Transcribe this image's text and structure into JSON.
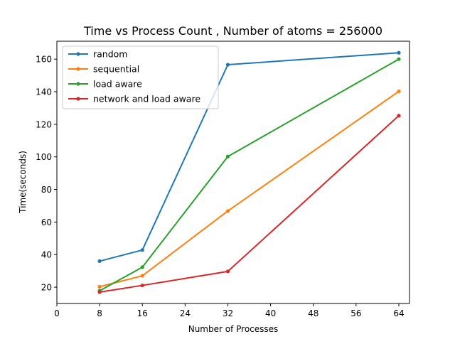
{
  "chart_data": {
    "type": "line",
    "title": "Time vs Process Count , Number of atoms = 256000",
    "xlabel": "Number of Processes",
    "ylabel": "Time(seconds)",
    "xlim": [
      0,
      66
    ],
    "ylim": [
      10,
      171
    ],
    "xticks": [
      0,
      8,
      16,
      24,
      32,
      40,
      48,
      56,
      64
    ],
    "yticks": [
      20,
      40,
      60,
      80,
      100,
      120,
      140,
      160
    ],
    "x": [
      8,
      16,
      32,
      64
    ],
    "grid": false,
    "legend_position": "upper left",
    "series": [
      {
        "name": "random",
        "color": "#1f77b4",
        "values": [
          36,
          42.8,
          156.6,
          163.9
        ]
      },
      {
        "name": "sequential",
        "color": "#ff7f0e",
        "values": [
          20.3,
          27,
          66.8,
          140.2
        ]
      },
      {
        "name": "load aware",
        "color": "#2ca02c",
        "values": [
          17.8,
          32.3,
          100.2,
          160
        ]
      },
      {
        "name": "network and load aware",
        "color": "#d62728",
        "values": [
          17,
          21.1,
          29.7,
          125.3
        ]
      }
    ]
  }
}
